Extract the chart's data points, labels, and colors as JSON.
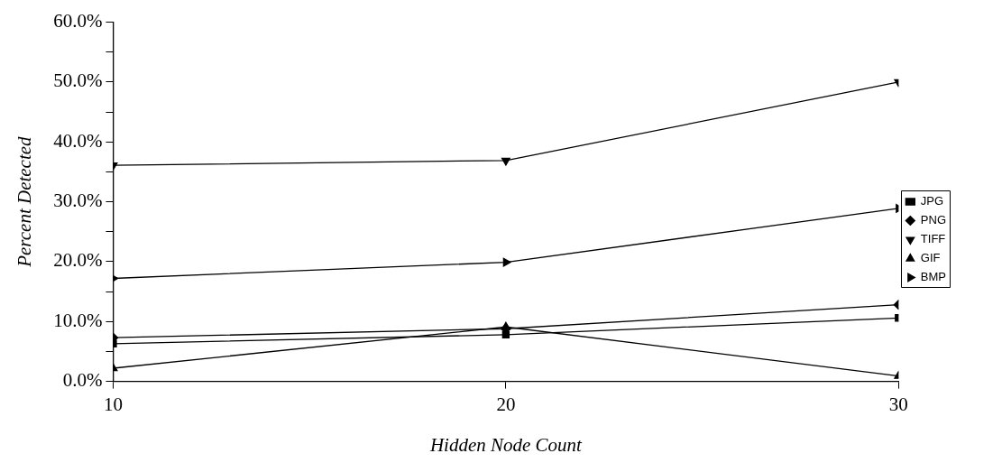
{
  "chart_data": {
    "type": "line",
    "xlabel": "Hidden Node Count",
    "ylabel": "Percent Detected",
    "x": [
      10,
      20,
      30
    ],
    "series": [
      {
        "name": "JPG",
        "color": "#000000",
        "marker": "square",
        "values": [
          6.3,
          7.8,
          10.6
        ]
      },
      {
        "name": "PNG",
        "color": "#000000",
        "marker": "diamond",
        "values": [
          7.3,
          8.8,
          12.8
        ]
      },
      {
        "name": "TIFF",
        "color": "#000000",
        "marker": "triangle-down",
        "values": [
          36.1,
          36.9,
          50.0
        ]
      },
      {
        "name": "GIF",
        "color": "#000000",
        "marker": "triangle",
        "values": [
          2.2,
          9.1,
          0.9
        ]
      },
      {
        "name": "BMP",
        "color": "#000000",
        "marker": "triangle-right",
        "values": [
          17.2,
          19.9,
          28.9
        ]
      }
    ],
    "xlim": [
      10,
      30
    ],
    "xticks": [
      10,
      20,
      30
    ],
    "ylim": [
      0,
      60
    ],
    "yticks": [
      {
        "value": 0,
        "label": "0.0%"
      },
      {
        "value": 5,
        "label": null
      },
      {
        "value": 10,
        "label": "10.0%"
      },
      {
        "value": 15,
        "label": null
      },
      {
        "value": 20,
        "label": "20.0%"
      },
      {
        "value": 25,
        "label": null
      },
      {
        "value": 30,
        "label": "30.0%"
      },
      {
        "value": 35,
        "label": null
      },
      {
        "value": 40,
        "label": "40.0%"
      },
      {
        "value": 45,
        "label": null
      },
      {
        "value": 50,
        "label": "50.0%"
      },
      {
        "value": 55,
        "label": null
      },
      {
        "value": 60,
        "label": "60.0%"
      }
    ],
    "grid": false,
    "legend": "right",
    "line_style": "solid"
  }
}
